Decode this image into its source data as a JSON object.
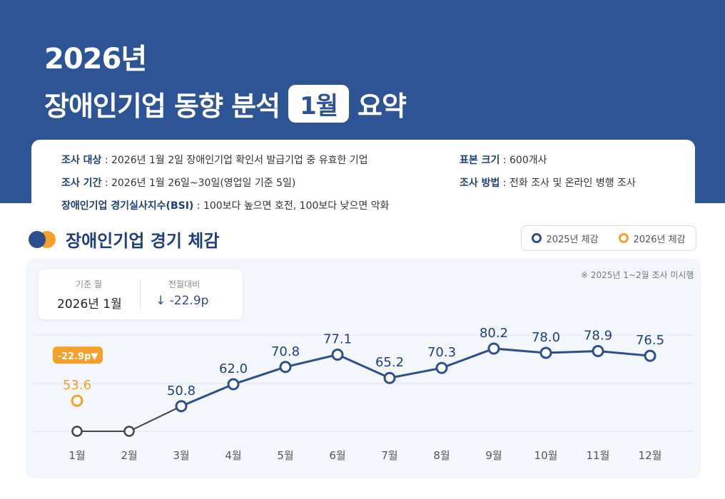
{
  "header": {
    "title_year": "2026년",
    "title_prefix": "장애인기업 동향 분석",
    "title_month": "1월",
    "title_suffix": "요약"
  },
  "survey_info": {
    "target_label": "조사 대상",
    "target_value": " : 2026년 1월 2일 장애인기업 확인서 발급기업 중 유효한 기업",
    "period_label": "조사 기간",
    "period_value": " : 2026년 1월 26일~30일(영업일 기준 5일)",
    "bsi_label": "장애인기업 경기실사지수(BSI)",
    "bsi_value": " : 100보다 높으면 호전, 100보다 낮으면 악화",
    "sample_label": "표본 크기",
    "sample_value": " : 600개사",
    "method_label": "조사 방법",
    "method_value": " : 전화 조사 및 온라인 병행 조사"
  },
  "section": {
    "title": "장애인기업 경기 체감"
  },
  "legend": {
    "item_2025": "2025년 체감",
    "item_2026": "2026년 체감"
  },
  "base_box": {
    "base_month_label": "기준 월",
    "base_month_value": "2026년 1월",
    "prev_label": "전월대비",
    "prev_value": "↓ -22.9p"
  },
  "chart_note": "※ 2025년 1~2월 조사 미시행",
  "colors": {
    "series_2025": "#2d4f8f",
    "series_2026": "#f5a02a",
    "banner": "#2d5596"
  },
  "chart_data": {
    "type": "line",
    "categories": [
      "1월",
      "2월",
      "3월",
      "4월",
      "5월",
      "6월",
      "7월",
      "8월",
      "9월",
      "10월",
      "11월",
      "12월"
    ],
    "series": [
      {
        "name": "2025년 체감",
        "values": [
          null,
          null,
          50.8,
          62.0,
          70.8,
          77.1,
          65.2,
          70.3,
          80.2,
          78.0,
          78.9,
          76.5
        ],
        "labels": [
          "",
          "",
          "50.8",
          "62.0",
          "70.8",
          "77.1",
          "65.2",
          "70.3",
          "80.2",
          "78.0",
          "78.9",
          "76.5"
        ]
      },
      {
        "name": "2026년 체감",
        "values": [
          53.6,
          null,
          null,
          null,
          null,
          null,
          null,
          null,
          null,
          null,
          null,
          null
        ],
        "labels": [
          "53.6",
          "",
          "",
          "",
          "",
          "",
          "",
          "",
          "",
          "",
          "",
          ""
        ]
      }
    ],
    "change_badge": "-22.9p▼",
    "grid": true
  }
}
